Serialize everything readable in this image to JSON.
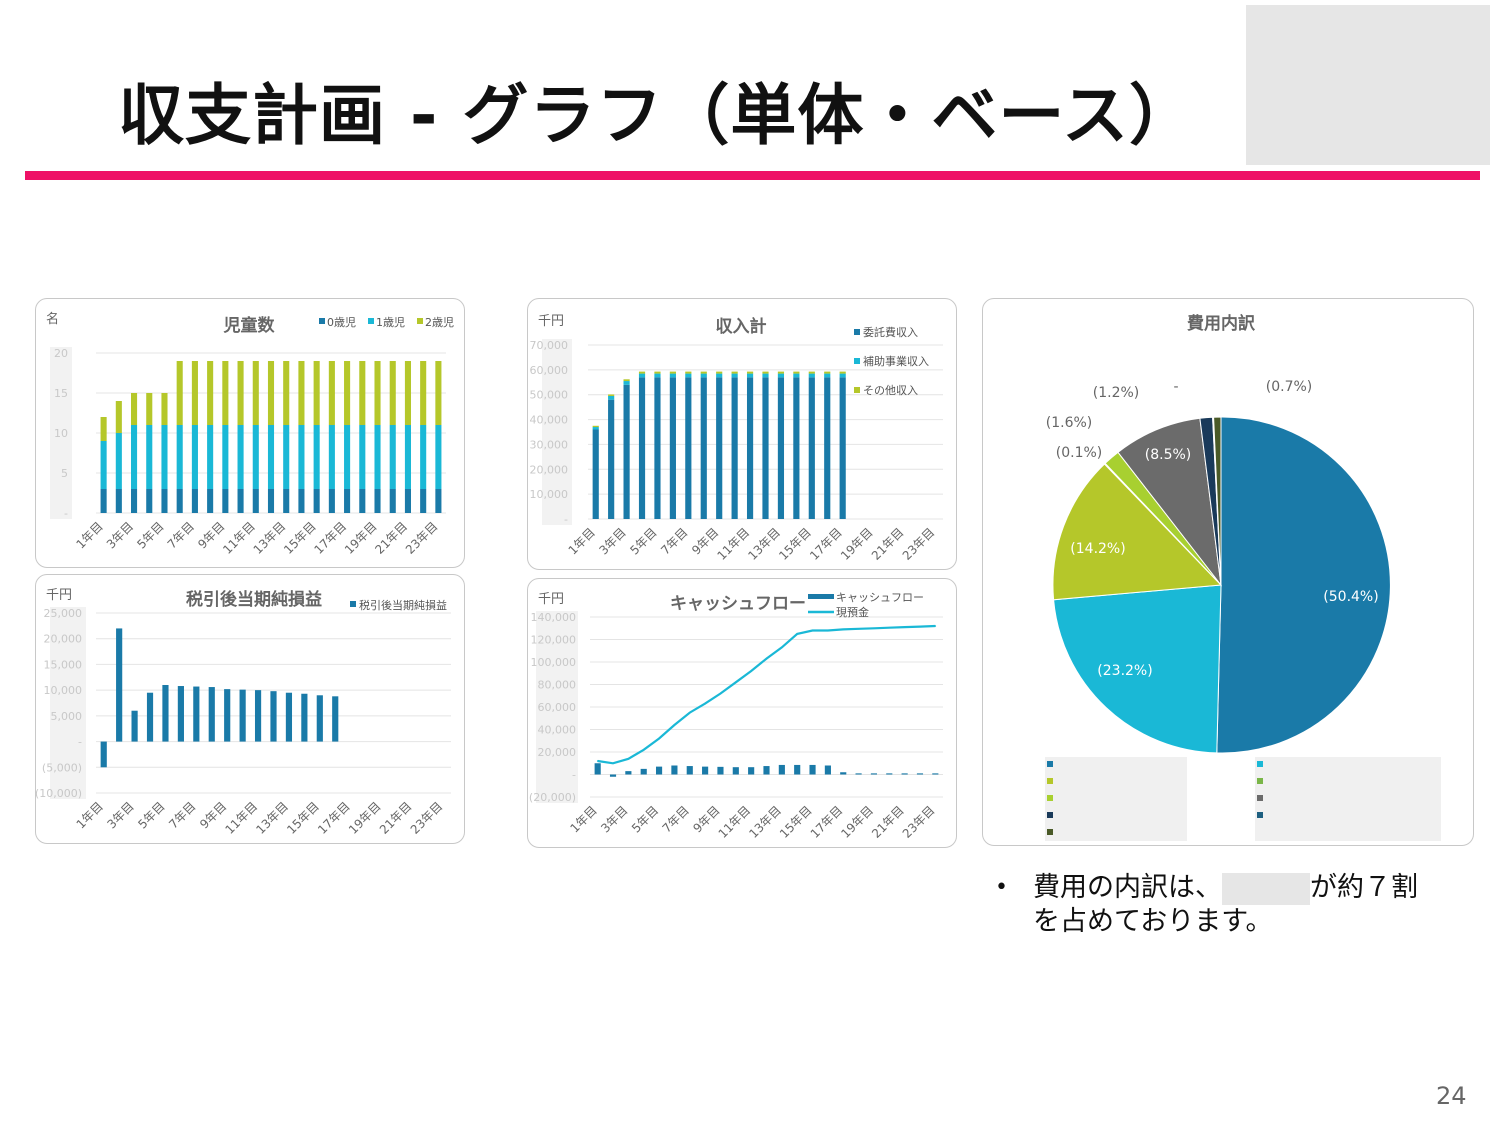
{
  "slide": {
    "title": "収支計画 - グラフ（単体・ベース）",
    "page_number": "24",
    "accent_color": "#ee1166",
    "bullet_line1_a": "費用の内訳は、",
    "bullet_line1_b": "が約７割",
    "bullet_line2": "を占めております。"
  },
  "chart_data": [
    {
      "id": "children",
      "type": "bar",
      "stacked": true,
      "title": "児童数",
      "unit_label": "名",
      "categories": [
        "1年目",
        "2年目",
        "3年目",
        "4年目",
        "5年目",
        "6年目",
        "7年目",
        "8年目",
        "9年目",
        "10年目",
        "11年目",
        "12年目",
        "13年目",
        "14年目",
        "15年目",
        "16年目",
        "17年目",
        "18年目",
        "19年目",
        "20年目",
        "21年目",
        "22年目",
        "23年目"
      ],
      "x_tick_labels": [
        "1年目",
        "3年目",
        "5年目",
        "7年目",
        "9年目",
        "11年目",
        "13年目",
        "15年目",
        "17年目",
        "19年目",
        "21年目",
        "23年目"
      ],
      "ylim": [
        0,
        20
      ],
      "y_tick_labels": [
        "-",
        "5",
        "10",
        "15",
        "20"
      ],
      "series": [
        {
          "name": "0歳児",
          "color": "#1a7aa8",
          "values": [
            3,
            3,
            3,
            3,
            3,
            3,
            3,
            3,
            3,
            3,
            3,
            3,
            3,
            3,
            3,
            3,
            3,
            3,
            3,
            3,
            3,
            3,
            3
          ]
        },
        {
          "name": "1歳児",
          "color": "#1ab8d6",
          "values": [
            6,
            7,
            8,
            8,
            8,
            8,
            8,
            8,
            8,
            8,
            8,
            8,
            8,
            8,
            8,
            8,
            8,
            8,
            8,
            8,
            8,
            8,
            8
          ]
        },
        {
          "name": "2歳児",
          "color": "#b5c72a",
          "values": [
            3,
            4,
            4,
            4,
            4,
            8,
            8,
            8,
            8,
            8,
            8,
            8,
            8,
            8,
            8,
            8,
            8,
            8,
            8,
            8,
            8,
            8,
            8
          ]
        }
      ]
    },
    {
      "id": "revenue",
      "type": "bar",
      "stacked": true,
      "title": "収入計",
      "unit_label": "千円",
      "categories": [
        "1年目",
        "2年目",
        "3年目",
        "4年目",
        "5年目",
        "6年目",
        "7年目",
        "8年目",
        "9年目",
        "10年目",
        "11年目",
        "12年目",
        "13年目",
        "14年目",
        "15年目",
        "16年目",
        "17年目",
        "18年目",
        "19年目",
        "20年目",
        "21年目",
        "22年目",
        "23年目"
      ],
      "x_tick_labels": [
        "1年目",
        "3年目",
        "5年目",
        "7年目",
        "9年目",
        "11年目",
        "13年目",
        "15年目",
        "17年目",
        "19年目",
        "21年目",
        "23年目"
      ],
      "ylim": [
        0,
        70000
      ],
      "y_tick_labels": [
        "-",
        "10,000",
        "20,000",
        "30,000",
        "40,000",
        "50,000",
        "60,000",
        "70,000"
      ],
      "series": [
        {
          "name": "委託費収入",
          "color": "#1a7aa8",
          "values": [
            36000,
            48000,
            54000,
            57000,
            57000,
            57000,
            57000,
            57000,
            57000,
            57000,
            57000,
            57000,
            57000,
            57000,
            57000,
            57000,
            57000,
            0,
            0,
            0,
            0,
            0,
            0
          ]
        },
        {
          "name": "補助事業収入",
          "color": "#1ab8d6",
          "values": [
            1000,
            1500,
            1500,
            1500,
            1500,
            1500,
            1500,
            1500,
            1500,
            1500,
            1500,
            1500,
            1500,
            1500,
            1500,
            1500,
            1500,
            0,
            0,
            0,
            0,
            0,
            0
          ]
        },
        {
          "name": "その他収入",
          "color": "#b5c72a",
          "values": [
            500,
            600,
            700,
            800,
            800,
            800,
            800,
            800,
            800,
            800,
            800,
            800,
            800,
            800,
            800,
            800,
            800,
            0,
            0,
            0,
            0,
            0,
            0
          ]
        }
      ]
    },
    {
      "id": "netincome",
      "type": "bar",
      "title": "税引後当期純損益",
      "unit_label": "千円",
      "categories": [
        "1年目",
        "2年目",
        "3年目",
        "4年目",
        "5年目",
        "6年目",
        "7年目",
        "8年目",
        "9年目",
        "10年目",
        "11年目",
        "12年目",
        "13年目",
        "14年目",
        "15年目",
        "16年目",
        "17年目",
        "18年目",
        "19年目",
        "20年目",
        "21年目",
        "22年目",
        "23年目"
      ],
      "x_tick_labels": [
        "1年目",
        "3年目",
        "5年目",
        "7年目",
        "9年目",
        "11年目",
        "13年目",
        "15年目",
        "17年目",
        "19年目",
        "21年目",
        "23年目"
      ],
      "ylim": [
        -10000,
        25000
      ],
      "y_tick_labels": [
        "(10,000)",
        "(5,000)",
        "-",
        "5,000",
        "10,000",
        "15,000",
        "20,000",
        "25,000"
      ],
      "series": [
        {
          "name": "税引後当期純損益",
          "color": "#1a7aa8",
          "values": [
            -5000,
            22000,
            6000,
            9500,
            11000,
            10800,
            10700,
            10600,
            10200,
            10100,
            10000,
            9800,
            9500,
            9300,
            9000,
            8800,
            0,
            0,
            0,
            0,
            0,
            0,
            0
          ]
        }
      ]
    },
    {
      "id": "cashflow",
      "type": "line",
      "title": "キャッシュフロー",
      "unit_label": "千円",
      "categories": [
        "1年目",
        "2年目",
        "3年目",
        "4年目",
        "5年目",
        "6年目",
        "7年目",
        "8年目",
        "9年目",
        "10年目",
        "11年目",
        "12年目",
        "13年目",
        "14年目",
        "15年目",
        "16年目",
        "17年目",
        "18年目",
        "19年目",
        "20年目",
        "21年目",
        "22年目",
        "23年目"
      ],
      "x_tick_labels": [
        "1年目",
        "3年目",
        "5年目",
        "7年目",
        "9年目",
        "11年目",
        "13年目",
        "15年目",
        "17年目",
        "19年目",
        "21年目",
        "23年目"
      ],
      "ylim": [
        -20000,
        140000
      ],
      "y_tick_labels": [
        "(20,000)",
        "-",
        "20,000",
        "40,000",
        "60,000",
        "80,000",
        "100,000",
        "120,000",
        "140,000"
      ],
      "series": [
        {
          "name": "キャッシュフロー",
          "type": "bar",
          "color": "#1a7aa8",
          "values": [
            10000,
            -2000,
            3000,
            5000,
            7000,
            8000,
            7500,
            7000,
            6800,
            6500,
            6500,
            7500,
            8500,
            8500,
            8500,
            8000,
            2000,
            1000,
            1000,
            1000,
            1000,
            1000,
            1000
          ]
        },
        {
          "name": "現預金",
          "type": "line",
          "color": "#1ab8d6",
          "values": [
            12000,
            10000,
            14000,
            22000,
            32000,
            44000,
            55000,
            63000,
            72000,
            82000,
            92000,
            103000,
            113000,
            125000,
            128000,
            128000,
            129000,
            129500,
            130000,
            130500,
            131000,
            131500,
            132000
          ]
        }
      ]
    },
    {
      "id": "costs",
      "type": "pie",
      "title": "費用内訳",
      "slices": [
        {
          "label": "(50.4%)",
          "value": 50.4,
          "color": "#1a7aa8"
        },
        {
          "label": "(23.2%)",
          "value": 23.2,
          "color": "#1ab8d6"
        },
        {
          "label": "(14.2%)",
          "value": 14.2,
          "color": "#b5c72a"
        },
        {
          "label": "(0.1%)",
          "value": 0.1,
          "color": "#7ab648"
        },
        {
          "label": "(1.6%)",
          "value": 1.6,
          "color": "#a8d030"
        },
        {
          "label": "(8.5%)",
          "value": 8.5,
          "color": "#6b6b6b"
        },
        {
          "label": "(1.2%)",
          "value": 1.2,
          "color": "#1a3a5a"
        },
        {
          "label": "-",
          "value": 0.1,
          "color": "#1d5f80"
        },
        {
          "label": "(0.7%)",
          "value": 0.7,
          "color": "#4a5a28"
        }
      ]
    }
  ]
}
